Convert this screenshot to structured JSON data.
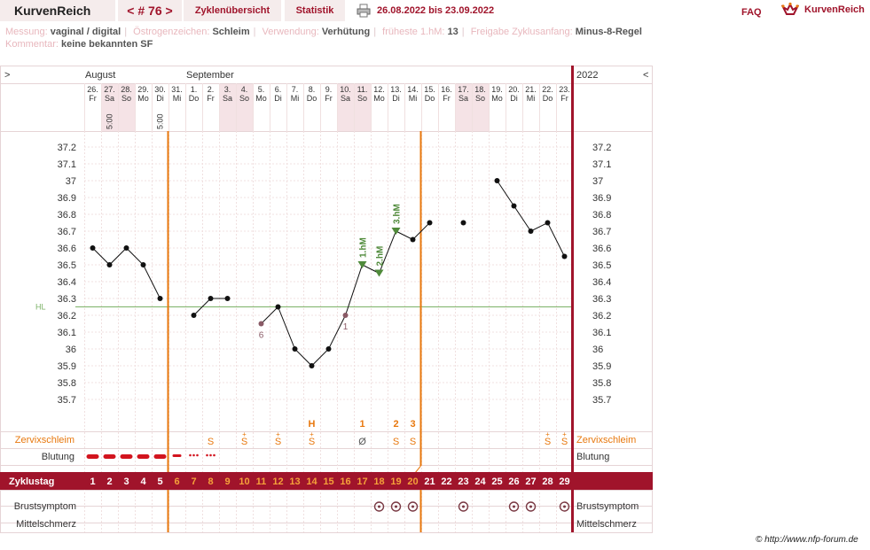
{
  "header": {
    "brand": "KurvenReich",
    "nav": "< # 76 >",
    "tab_cycles": "Zyklenübersicht",
    "tab_stats": "Statistik",
    "date_range": "26.08.2022 bis 23.09.2022",
    "faq": "FAQ",
    "logo_text": "KurvenReich",
    "icons": [
      "printer-icon",
      "crown-logo-icon"
    ]
  },
  "meta": {
    "messung_label": "Messung:",
    "messung_value": "vaginal / digital",
    "oestrogen_label": "Östrogenzeichen:",
    "oestrogen_value": "Schleim",
    "verwendung_label": "Verwendung:",
    "verwendung_value": "Verhütung",
    "fruehest_label": "früheste 1.hM:",
    "fruehest_value": "13",
    "freigabe_label": "Freigabe Zyklusanfang:",
    "freigabe_value": "Minus-8-Regel",
    "kommentar_label": "Kommentar:",
    "kommentar_value": "keine bekannten SF"
  },
  "chart_labels": {
    "prev": ">",
    "next": "<",
    "month1": "August",
    "month2": "September",
    "year": "2022",
    "hl": "HL",
    "row_zervix": "Zervixschleim",
    "row_blutung": "Blutung",
    "row_zyklustag": "Zyklustag",
    "row_brust": "Brustsymptom",
    "row_mittel": "Mittelschmerz",
    "copyright": "© http://www.nfp-forum.de"
  },
  "chart_data": {
    "type": "line",
    "y_ticks": [
      "37.2",
      "37.1",
      "37",
      "36.9",
      "36.8",
      "36.7",
      "36.6",
      "36.5",
      "36.4",
      "36.3",
      "36.2",
      "36.1",
      "36",
      "35.9",
      "35.8",
      "35.7"
    ],
    "ylim": [
      35.7,
      37.2
    ],
    "cover_line": 36.25,
    "days": [
      {
        "date": "26.",
        "wd": "Fr",
        "cd": 1,
        "we": false,
        "temp": 36.6,
        "seg": 0,
        "blut": "heavy"
      },
      {
        "date": "27.",
        "wd": "Sa",
        "cd": 2,
        "we": true,
        "temp": 36.5,
        "seg": 0,
        "blut": "heavy",
        "time": "5:00"
      },
      {
        "date": "28.",
        "wd": "So",
        "cd": 3,
        "we": true,
        "temp": 36.6,
        "seg": 0,
        "blut": "heavy"
      },
      {
        "date": "29.",
        "wd": "Mo",
        "cd": 4,
        "we": false,
        "temp": 36.5,
        "seg": 0,
        "blut": "heavy"
      },
      {
        "date": "30.",
        "wd": "Di",
        "cd": 5,
        "we": false,
        "temp": 36.3,
        "seg": 0,
        "blut": "heavy",
        "time": "5:00"
      },
      {
        "date": "31.",
        "wd": "Mi",
        "cd": 6,
        "we": false,
        "temp": null,
        "blut": "medium"
      },
      {
        "date": "1.",
        "wd": "Do",
        "cd": 7,
        "we": false,
        "temp": 36.2,
        "seg": 1,
        "blut": "light"
      },
      {
        "date": "2.",
        "wd": "Fr",
        "cd": 8,
        "we": false,
        "temp": 36.3,
        "seg": 1,
        "blut": "light",
        "zervix": "S"
      },
      {
        "date": "3.",
        "wd": "Sa",
        "cd": 9,
        "we": true,
        "temp": 36.3,
        "seg": 1
      },
      {
        "date": "4.",
        "wd": "So",
        "cd": 10,
        "we": true,
        "temp": null,
        "zervix": "S+"
      },
      {
        "date": "5.",
        "wd": "Mo",
        "cd": 11,
        "we": false,
        "temp": 36.15,
        "seg": 2,
        "excluded": true,
        "mark": "6"
      },
      {
        "date": "6.",
        "wd": "Di",
        "cd": 12,
        "we": false,
        "temp": 36.25,
        "seg": 2,
        "zervix": "S+"
      },
      {
        "date": "7.",
        "wd": "Mi",
        "cd": 13,
        "we": false,
        "temp": 36.0,
        "seg": 2
      },
      {
        "date": "8.",
        "wd": "Do",
        "cd": 14,
        "we": false,
        "temp": 35.9,
        "seg": 2,
        "zervix": "S+",
        "top": "H"
      },
      {
        "date": "9.",
        "wd": "Fr",
        "cd": 15,
        "we": false,
        "temp": 36.0,
        "seg": 2
      },
      {
        "date": "10.",
        "wd": "Sa",
        "cd": 16,
        "we": true,
        "temp": 36.2,
        "seg": 2,
        "excluded": true,
        "mark": "1"
      },
      {
        "date": "11.",
        "wd": "So",
        "cd": 17,
        "we": true,
        "temp": 36.5,
        "seg": 2,
        "hm": "1.hM",
        "zervix": "Ø",
        "top": "1"
      },
      {
        "date": "12.",
        "wd": "Mo",
        "cd": 18,
        "we": false,
        "temp": 36.45,
        "seg": 2,
        "hm": "2.hM",
        "brust": true
      },
      {
        "date": "13.",
        "wd": "Di",
        "cd": 19,
        "we": false,
        "temp": 36.7,
        "seg": 2,
        "hm": "3.hM",
        "zervix": "S",
        "top": "2",
        "brust": true
      },
      {
        "date": "14.",
        "wd": "Mi",
        "cd": 20,
        "we": false,
        "temp": 36.65,
        "seg": 2,
        "zervix": "S",
        "top": "3",
        "brust": true
      },
      {
        "date": "15.",
        "wd": "Do",
        "cd": 21,
        "we": false,
        "temp": 36.75,
        "seg": 2
      },
      {
        "date": "16.",
        "wd": "Fr",
        "cd": 22,
        "we": false,
        "temp": null
      },
      {
        "date": "17.",
        "wd": "Sa",
        "cd": 23,
        "we": true,
        "temp": 36.75,
        "seg": 3,
        "brust": true
      },
      {
        "date": "18.",
        "wd": "So",
        "cd": 24,
        "we": true,
        "temp": null
      },
      {
        "date": "19.",
        "wd": "Mo",
        "cd": 25,
        "we": false,
        "temp": 37.0,
        "seg": 4
      },
      {
        "date": "20.",
        "wd": "Di",
        "cd": 26,
        "we": false,
        "temp": 36.85,
        "seg": 4,
        "brust": true
      },
      {
        "date": "21.",
        "wd": "Mi",
        "cd": 27,
        "we": false,
        "temp": 36.7,
        "seg": 4,
        "brust": true
      },
      {
        "date": "22.",
        "wd": "Do",
        "cd": 28,
        "we": false,
        "temp": 36.75,
        "seg": 4,
        "zervix": "S+"
      },
      {
        "date": "23.",
        "wd": "Fr",
        "cd": 29,
        "we": false,
        "temp": 36.55,
        "seg": 4,
        "zervix": "S+",
        "brust": true
      }
    ]
  },
  "colors": {
    "accent": "#a0142b",
    "orange": "#e8780e",
    "grid": "#f0e0e0",
    "weekend": "#f5e3e6",
    "line": "#7cb267",
    "green_marker": "#4f8a3a",
    "excluded": "#8a5a66"
  }
}
